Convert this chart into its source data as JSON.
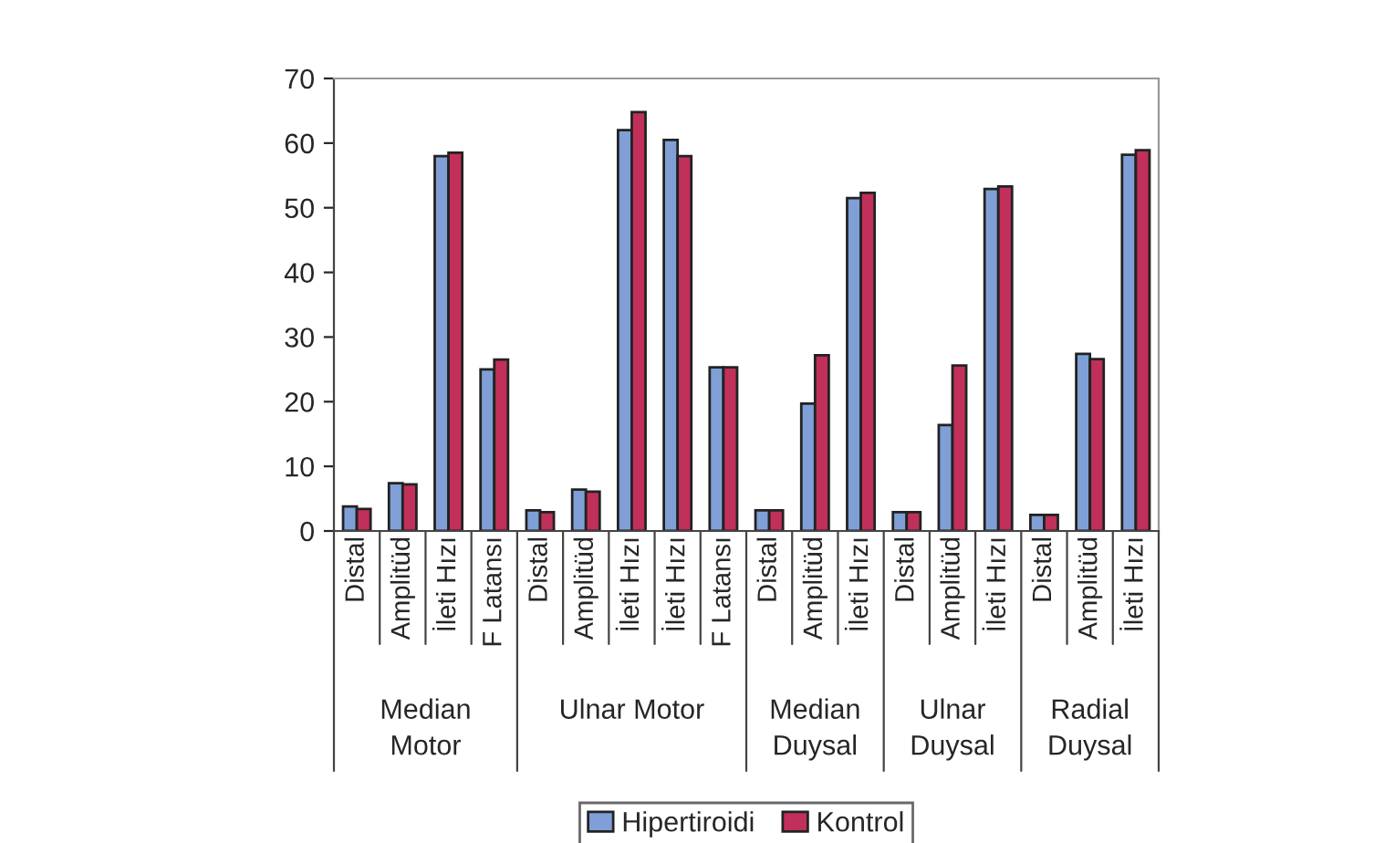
{
  "chart_data": {
    "type": "bar",
    "categories": [
      "Distal",
      "Amplitüd",
      "İleti Hızı",
      "F Latansı",
      "Distal",
      "Amplitüd",
      "İleti Hızı",
      "İleti Hızı",
      "F Latansı",
      "Distal",
      "Amplitüd",
      "İleti Hızı",
      "Distal",
      "Amplitüd",
      "İleti Hızı",
      "Distal",
      "Amplitüd",
      "İleti Hızı"
    ],
    "series": [
      {
        "name": "Hipertiroidi",
        "color": "#7f9fd6",
        "values": [
          3.8,
          7.4,
          58,
          25,
          3.2,
          6.4,
          62,
          60.5,
          25.3,
          3.2,
          19.7,
          51.5,
          2.9,
          16.4,
          52.9,
          2.5,
          27.4,
          58.2
        ]
      },
      {
        "name": "Kontrol",
        "color": "#c0305a",
        "values": [
          3.4,
          7.2,
          58.5,
          26.5,
          2.9,
          6.1,
          64.8,
          58,
          25.3,
          3.2,
          27.2,
          52.3,
          2.9,
          25.6,
          53.3,
          2.5,
          26.6,
          58.9
        ]
      }
    ],
    "annotations": [
      "Median\nMotor",
      "Ulnar Motor",
      "Median\nDuysal",
      "Ulnar\nDuysal",
      "Radial\nDuysal"
    ],
    "ylim": [
      0,
      70
    ],
    "yticks": [
      0,
      10,
      20,
      30,
      40,
      50,
      60,
      70
    ],
    "legend": "bottom"
  }
}
